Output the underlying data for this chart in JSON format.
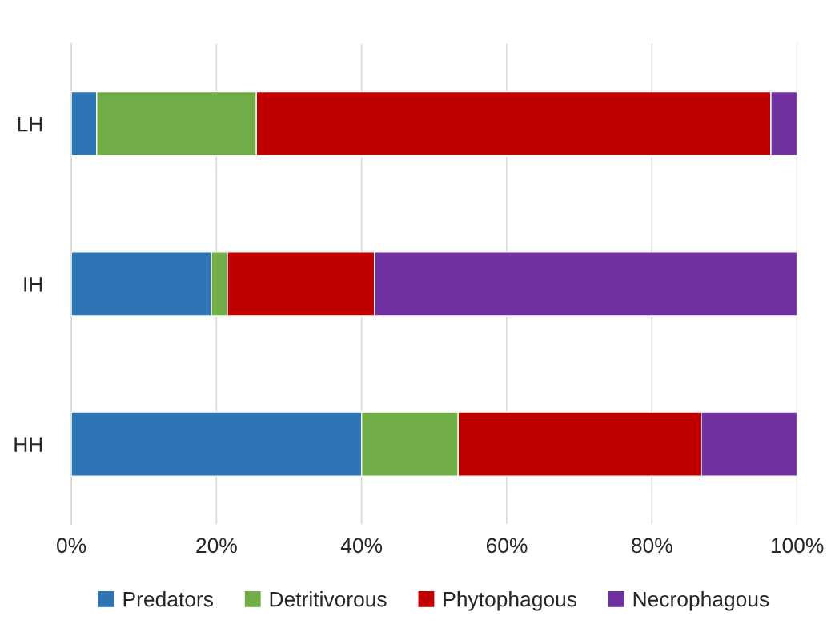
{
  "chart_data": {
    "type": "bar",
    "orientation": "horizontal",
    "stacked": true,
    "categories": [
      "LH",
      "IH",
      "HH"
    ],
    "series": [
      {
        "name": "Predators",
        "color": "#2e75b6",
        "values": [
          3.5,
          19.3,
          40.0
        ]
      },
      {
        "name": "Detritivorous",
        "color": "#70ad47",
        "values": [
          22.0,
          2.2,
          13.3
        ]
      },
      {
        "name": "Phytophagous",
        "color": "#c00000",
        "values": [
          70.9,
          20.3,
          33.5
        ]
      },
      {
        "name": "Necrophagous",
        "color": "#7030a0",
        "values": [
          3.6,
          58.2,
          13.2
        ]
      }
    ],
    "xlim": [
      0,
      100
    ],
    "xticks": [
      {
        "value": 0,
        "label": "0%"
      },
      {
        "value": 20,
        "label": "20%"
      },
      {
        "value": 40,
        "label": "40%"
      },
      {
        "value": 60,
        "label": "60%"
      },
      {
        "value": 80,
        "label": "80%"
      },
      {
        "value": 100,
        "label": "100%"
      }
    ],
    "grid": "x",
    "legend": "bottom"
  }
}
